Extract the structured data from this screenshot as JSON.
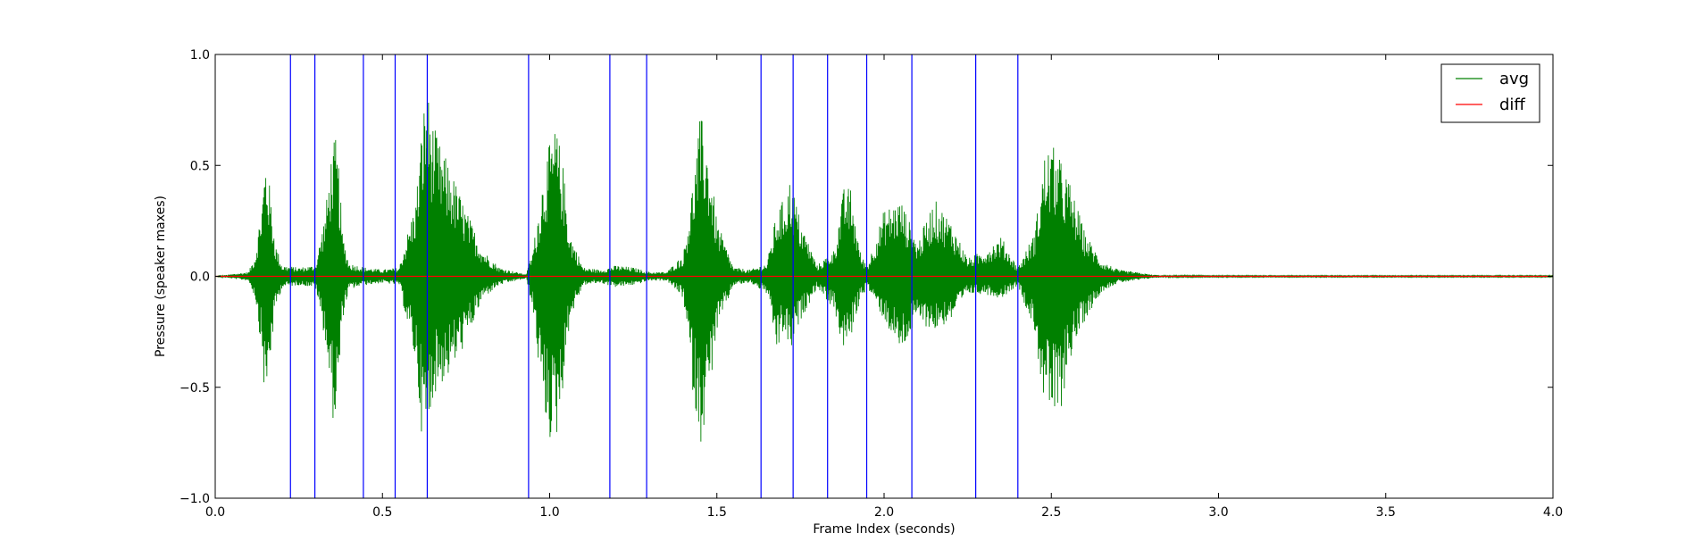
{
  "chart_data": {
    "type": "line",
    "title": "",
    "xlabel": "Frame Index (seconds)",
    "ylabel": "Pressure (speaker maxes)",
    "xlim": [
      0.0,
      4.0
    ],
    "ylim": [
      -1.0,
      1.0
    ],
    "x_ticks": [
      0.0,
      0.5,
      1.0,
      1.5,
      2.0,
      2.5,
      3.0,
      3.5,
      4.0
    ],
    "x_tick_labels": [
      "0.0",
      "0.5",
      "1.0",
      "1.5",
      "2.0",
      "2.5",
      "3.0",
      "3.5",
      "4.0"
    ],
    "y_ticks": [
      1.0,
      0.5,
      0.0,
      -0.5,
      -1.0
    ],
    "y_tick_labels": [
      "1.0",
      "0.5",
      "0.0",
      "−0.5",
      "−1.0"
    ],
    "grid": false,
    "legend_position": "top-right",
    "series": [
      {
        "name": "avg",
        "color": "#008000",
        "envelope": {
          "x": [
            0.0,
            0.1,
            0.12,
            0.14,
            0.15,
            0.16,
            0.18,
            0.2,
            0.25,
            0.3,
            0.33,
            0.35,
            0.36,
            0.37,
            0.38,
            0.4,
            0.45,
            0.5,
            0.55,
            0.6,
            0.62,
            0.63,
            0.64,
            0.65,
            0.67,
            0.7,
            0.75,
            0.8,
            0.85,
            0.9,
            0.93,
            0.95,
            0.98,
            1.0,
            1.02,
            1.04,
            1.06,
            1.1,
            1.15,
            1.2,
            1.25,
            1.3,
            1.35,
            1.4,
            1.43,
            1.45,
            1.46,
            1.48,
            1.5,
            1.55,
            1.6,
            1.65,
            1.68,
            1.7,
            1.72,
            1.75,
            1.8,
            1.85,
            1.88,
            1.9,
            1.93,
            1.95,
            2.0,
            2.05,
            2.1,
            2.15,
            2.2,
            2.25,
            2.3,
            2.35,
            2.4,
            2.45,
            2.48,
            2.5,
            2.52,
            2.55,
            2.6,
            2.65,
            2.7,
            2.75,
            2.8,
            2.85,
            3.0,
            3.5,
            4.0
          ],
          "upper": [
            0.0,
            0.02,
            0.1,
            0.35,
            0.55,
            0.45,
            0.15,
            0.05,
            0.04,
            0.05,
            0.3,
            0.6,
            0.62,
            0.5,
            0.2,
            0.06,
            0.04,
            0.03,
            0.04,
            0.35,
            0.72,
            0.85,
            0.8,
            0.7,
            0.6,
            0.5,
            0.3,
            0.12,
            0.04,
            0.02,
            0.01,
            0.12,
            0.45,
            0.6,
            0.68,
            0.5,
            0.2,
            0.04,
            0.03,
            0.05,
            0.04,
            0.02,
            0.02,
            0.1,
            0.45,
            0.72,
            0.7,
            0.5,
            0.25,
            0.04,
            0.03,
            0.06,
            0.3,
            0.35,
            0.45,
            0.25,
            0.05,
            0.12,
            0.4,
            0.4,
            0.1,
            0.05,
            0.3,
            0.35,
            0.15,
            0.35,
            0.25,
            0.08,
            0.12,
            0.18,
            0.04,
            0.2,
            0.55,
            0.6,
            0.55,
            0.45,
            0.2,
            0.07,
            0.03,
            0.02,
            0.008,
            0.004,
            0.003,
            0.003,
            0.003
          ],
          "lower": [
            0.0,
            -0.02,
            -0.1,
            -0.35,
            -0.62,
            -0.45,
            -0.15,
            -0.05,
            -0.04,
            -0.05,
            -0.3,
            -0.64,
            -0.66,
            -0.5,
            -0.2,
            -0.06,
            -0.04,
            -0.03,
            -0.04,
            -0.4,
            -0.76,
            -0.75,
            -0.7,
            -0.55,
            -0.5,
            -0.45,
            -0.3,
            -0.1,
            -0.04,
            -0.02,
            -0.01,
            -0.15,
            -0.6,
            -0.74,
            -0.74,
            -0.5,
            -0.2,
            -0.04,
            -0.03,
            -0.05,
            -0.04,
            -0.02,
            -0.02,
            -0.1,
            -0.55,
            -0.76,
            -0.7,
            -0.5,
            -0.25,
            -0.04,
            -0.03,
            -0.08,
            -0.35,
            -0.25,
            -0.35,
            -0.2,
            -0.05,
            -0.15,
            -0.35,
            -0.28,
            -0.1,
            -0.05,
            -0.2,
            -0.35,
            -0.2,
            -0.25,
            -0.2,
            -0.08,
            -0.08,
            -0.1,
            -0.04,
            -0.25,
            -0.6,
            -0.62,
            -0.7,
            -0.4,
            -0.2,
            -0.07,
            -0.03,
            -0.02,
            -0.008,
            -0.004,
            -0.003,
            -0.003,
            -0.003
          ]
        }
      },
      {
        "name": "diff",
        "color": "#ff0000",
        "x": [
          0.0,
          4.0
        ],
        "values": [
          0.0,
          0.0
        ]
      }
    ],
    "vertical_markers": {
      "color": "#0000ff",
      "x": [
        0.225,
        0.298,
        0.443,
        0.538,
        0.634,
        0.937,
        1.18,
        1.29,
        1.632,
        1.728,
        1.831,
        1.948,
        2.083,
        2.274,
        2.4
      ]
    }
  }
}
